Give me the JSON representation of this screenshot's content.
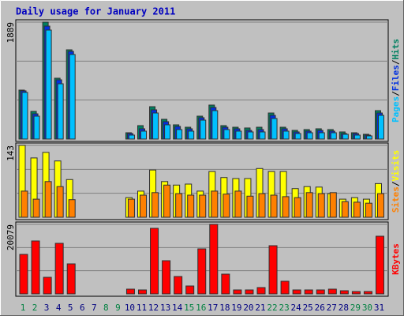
{
  "chart_data": [
    {
      "type": "bar",
      "title": "Daily usage for January 2011",
      "categories": [
        "1",
        "2",
        "3",
        "4",
        "5",
        "6",
        "7",
        "8",
        "9",
        "10",
        "11",
        "12",
        "13",
        "14",
        "15",
        "16",
        "17",
        "18",
        "19",
        "20",
        "21",
        "22",
        "23",
        "24",
        "25",
        "26",
        "27",
        "28",
        "29",
        "30",
        "31"
      ],
      "legend_separator": "/",
      "series": [
        {
          "name": "Hits",
          "color": "#008060",
          "values": [
            791,
            447,
            1889,
            983,
            1442,
            0,
            0,
            0,
            0,
            102,
            217,
            523,
            319,
            230,
            191,
            370,
            549,
            217,
            191,
            179,
            191,
            421,
            191,
            140,
            153,
            166,
            153,
            115,
            102,
            77,
            459
          ]
        },
        {
          "name": "Files",
          "color": "#0030e0",
          "values": [
            779,
            408,
            1825,
            957,
            1417,
            0,
            0,
            0,
            0,
            89,
            166,
            472,
            281,
            204,
            166,
            345,
            510,
            191,
            166,
            140,
            153,
            383,
            166,
            115,
            128,
            140,
            128,
            89,
            89,
            64,
            421
          ]
        },
        {
          "name": "Pages",
          "color": "#00c0ff",
          "values": [
            753,
            370,
            1761,
            893,
            1366,
            0,
            0,
            0,
            0,
            64,
            128,
            421,
            230,
            153,
            128,
            306,
            459,
            153,
            128,
            115,
            115,
            332,
            128,
            89,
            102,
            102,
            102,
            77,
            64,
            51,
            383
          ]
        }
      ],
      "ylim": [
        0,
        1889
      ],
      "yticks": [
        1889
      ],
      "grid": true
    },
    {
      "type": "bar",
      "categories": [
        "1",
        "2",
        "3",
        "4",
        "5",
        "6",
        "7",
        "8",
        "9",
        "10",
        "11",
        "12",
        "13",
        "14",
        "15",
        "16",
        "17",
        "18",
        "19",
        "20",
        "21",
        "22",
        "23",
        "24",
        "25",
        "26",
        "27",
        "28",
        "29",
        "30",
        "31"
      ],
      "legend_separator": "/",
      "series": [
        {
          "name": "Visits",
          "color": "#ffff00",
          "values": [
            143,
            118,
            129,
            112,
            75,
            0,
            0,
            0,
            0,
            39,
            52,
            94,
            71,
            64,
            66,
            52,
            91,
            79,
            77,
            77,
            97,
            91,
            91,
            57,
            61,
            60,
            47,
            36,
            39,
            36,
            67
          ]
        },
        {
          "name": "Sites",
          "color": "#ff8000",
          "values": [
            52,
            36,
            71,
            61,
            35,
            0,
            0,
            0,
            0,
            36,
            44,
            49,
            64,
            47,
            44,
            44,
            52,
            46,
            52,
            42,
            47,
            44,
            41,
            39,
            49,
            47,
            49,
            31,
            30,
            28,
            47
          ]
        }
      ],
      "ylim": [
        0,
        143
      ],
      "yticks": [
        143
      ],
      "grid": true
    },
    {
      "type": "bar",
      "categories": [
        "1",
        "2",
        "3",
        "4",
        "5",
        "6",
        "7",
        "8",
        "9",
        "10",
        "11",
        "12",
        "13",
        "14",
        "15",
        "16",
        "17",
        "18",
        "19",
        "20",
        "21",
        "22",
        "23",
        "24",
        "25",
        "26",
        "27",
        "28",
        "29",
        "30",
        "31"
      ],
      "category_colors": [
        "#008040",
        "#008040",
        "#000080",
        "#000080",
        "#000080",
        "#000080",
        "#000080",
        "#008040",
        "#008040",
        "#000080",
        "#000080",
        "#000080",
        "#000080",
        "#000080",
        "#008040",
        "#008040",
        "#000080",
        "#000080",
        "#000080",
        "#000080",
        "#000080",
        "#008040",
        "#008040",
        "#000080",
        "#000080",
        "#000080",
        "#000080",
        "#000080",
        "#008040",
        "#008040",
        "#000080"
      ],
      "series": [
        {
          "name": "KBytes",
          "color": "#ff0000",
          "values": [
            11409,
            15288,
            4792,
            14604,
            8670,
            0,
            0,
            0,
            0,
            1369,
            1141,
            18938,
            9583,
            5020,
            2282,
            13006,
            20079,
            5705,
            1141,
            1141,
            1825,
            13919,
            3651,
            1141,
            1141,
            1141,
            1369,
            913,
            685,
            685,
            16656
          ]
        }
      ],
      "ylim": [
        0,
        20079
      ],
      "yticks": [
        20079
      ],
      "grid": true
    }
  ]
}
